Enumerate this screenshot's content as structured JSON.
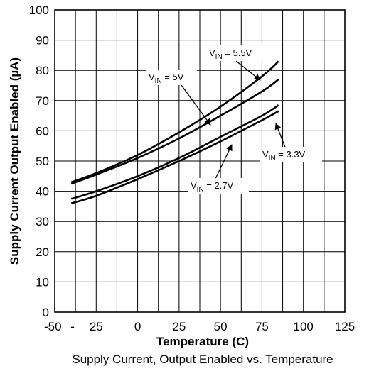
{
  "chart_data": {
    "type": "line",
    "title": "Supply Current, Output Enabled vs. Temperature",
    "xlabel": "Temperature (C)",
    "ylabel": "Supply Current Output Enabled (µA)",
    "xlim": [
      -50,
      125
    ],
    "ylim": [
      0,
      100
    ],
    "x_ticks": [
      "-50",
      "-",
      "-25",
      "0",
      "25",
      "50",
      "75",
      "100",
      "125"
    ],
    "y_ticks": [
      "0",
      "10",
      "20",
      "30",
      "40",
      "50",
      "60",
      "70",
      "80",
      "90",
      "100"
    ],
    "grid": true,
    "series": [
      {
        "name": "VIN = 5.5V",
        "x": [
          -40,
          -25,
          0,
          25,
          50,
          75,
          85
        ],
        "y": [
          43,
          46,
          52,
          59.5,
          68,
          78,
          83
        ]
      },
      {
        "name": "VIN = 5V",
        "x": [
          -40,
          -25,
          0,
          25,
          50,
          75,
          85
        ],
        "y": [
          42.5,
          45.5,
          51,
          57.5,
          65,
          73,
          77
        ]
      },
      {
        "name": "VIN = 3.3V",
        "x": [
          -40,
          -25,
          0,
          25,
          50,
          75,
          85
        ],
        "y": [
          37.5,
          40,
          45,
          51,
          58,
          65,
          68.5
        ]
      },
      {
        "name": "VIN = 2.7V",
        "x": [
          -40,
          -25,
          0,
          25,
          50,
          75,
          85
        ],
        "y": [
          36,
          38.5,
          44,
          50,
          56.5,
          63.5,
          66.5
        ]
      }
    ],
    "annotations": [
      {
        "sub": "IN",
        "prefix": "V",
        "suffix": " = 5.5V"
      },
      {
        "sub": "IN",
        "prefix": "V",
        "suffix": " = 5V"
      },
      {
        "sub": "IN",
        "prefix": "V",
        "suffix": " = 3.3V"
      },
      {
        "sub": "IN",
        "prefix": "V",
        "suffix": " = 2.7V"
      }
    ]
  }
}
